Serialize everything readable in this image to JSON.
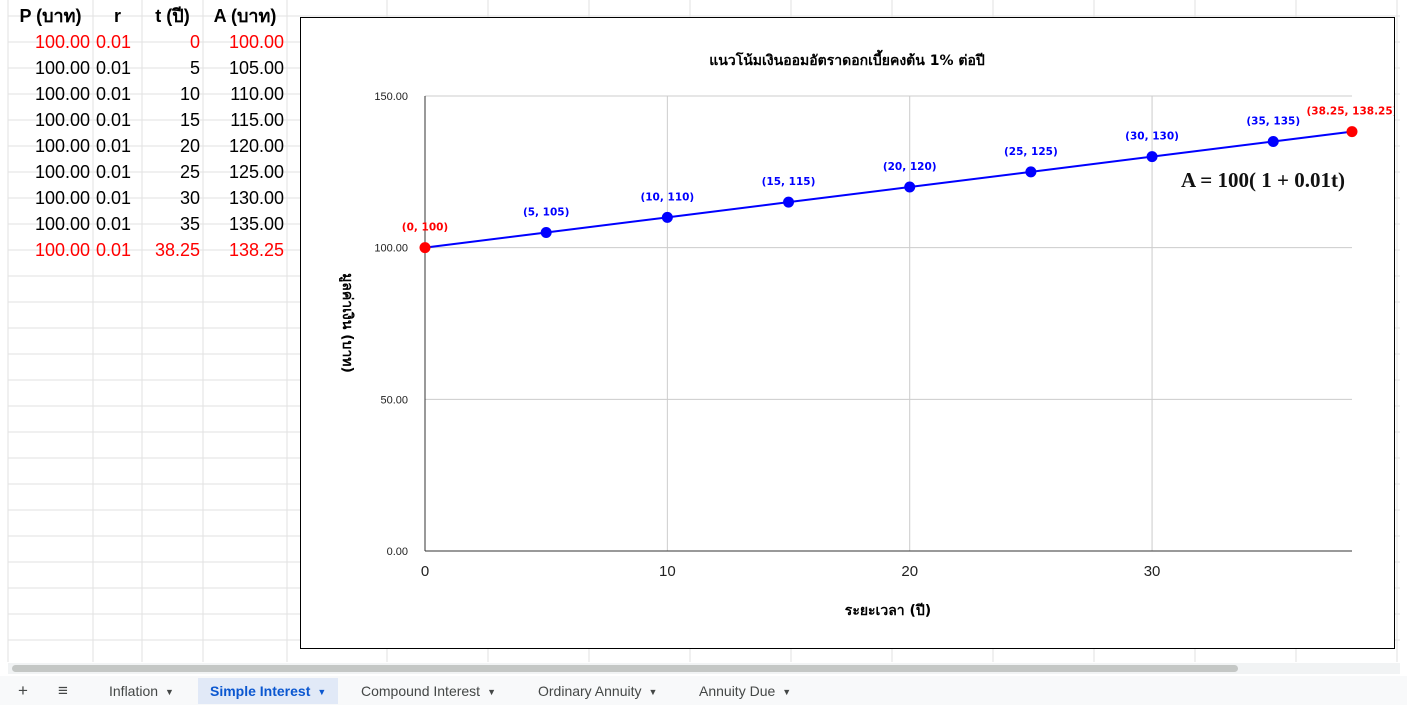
{
  "sheet": {
    "headers": [
      "P (บาท)",
      "r",
      "t (ปี)",
      "A (บาท)"
    ],
    "rows": [
      {
        "P": "100.00",
        "r": "0.01",
        "t": "0",
        "A": "100.00",
        "color": "#ff0000"
      },
      {
        "P": "100.00",
        "r": "0.01",
        "t": "5",
        "A": "105.00",
        "color": "#000000"
      },
      {
        "P": "100.00",
        "r": "0.01",
        "t": "10",
        "A": "110.00",
        "color": "#000000"
      },
      {
        "P": "100.00",
        "r": "0.01",
        "t": "15",
        "A": "115.00",
        "color": "#000000"
      },
      {
        "P": "100.00",
        "r": "0.01",
        "t": "20",
        "A": "120.00",
        "color": "#000000"
      },
      {
        "P": "100.00",
        "r": "0.01",
        "t": "25",
        "A": "125.00",
        "color": "#000000"
      },
      {
        "P": "100.00",
        "r": "0.01",
        "t": "30",
        "A": "130.00",
        "color": "#000000"
      },
      {
        "P": "100.00",
        "r": "0.01",
        "t": "35",
        "A": "135.00",
        "color": "#000000"
      },
      {
        "P": "100.00",
        "r": "0.01",
        "t": "38.25",
        "A": "138.25",
        "color": "#ff0000"
      }
    ]
  },
  "chart_data": {
    "type": "line",
    "title": "แนวโน้มเงินออมอัตราดอกเบี้ยคงต้น 1% ต่อปี",
    "xlabel": "ระยะเวลา (ปี)",
    "ylabel": "มูลค่าเงิน (บาท)",
    "xlim": [
      0,
      38.25
    ],
    "ylim": [
      0,
      150
    ],
    "x_ticks": [
      "0",
      "10",
      "20",
      "30"
    ],
    "y_ticks": [
      "0.00",
      "50.00",
      "100.00",
      "150.00"
    ],
    "grid": true,
    "annotation": "A = 100( 1 + 0.01t)",
    "line_color": "#0000ff",
    "series": [
      {
        "points": [
          {
            "x": 0,
            "y": 100,
            "label": "(0, 100)",
            "color": "#ff0000"
          },
          {
            "x": 5,
            "y": 105,
            "label": "(5, 105)",
            "color": "#0000ff"
          },
          {
            "x": 10,
            "y": 110,
            "label": "(10, 110)",
            "color": "#0000ff"
          },
          {
            "x": 15,
            "y": 115,
            "label": "(15, 115)",
            "color": "#0000ff"
          },
          {
            "x": 20,
            "y": 120,
            "label": "(20, 120)",
            "color": "#0000ff"
          },
          {
            "x": 25,
            "y": 125,
            "label": "(25, 125)",
            "color": "#0000ff"
          },
          {
            "x": 30,
            "y": 130,
            "label": "(30, 130)",
            "color": "#0000ff"
          },
          {
            "x": 35,
            "y": 135,
            "label": "(35, 135)",
            "color": "#0000ff"
          },
          {
            "x": 38.25,
            "y": 138.25,
            "label": "(38.25, 138.25)",
            "color": "#ff0000"
          }
        ]
      }
    ]
  },
  "tabbar": {
    "add_icon": "+",
    "menu_icon": "≡",
    "tabs": [
      {
        "label": "Inflation",
        "active": false
      },
      {
        "label": "Simple Interest",
        "active": true
      },
      {
        "label": "Compound Interest",
        "active": false
      },
      {
        "label": "Ordinary Annuity",
        "active": false
      },
      {
        "label": "Annuity Due",
        "active": false
      }
    ],
    "caret_icon": "▼"
  },
  "theme": {
    "grid_line": "#e2e2e2",
    "accent": "#0b57d0",
    "active_tab_bg": "#e1e9f7"
  }
}
